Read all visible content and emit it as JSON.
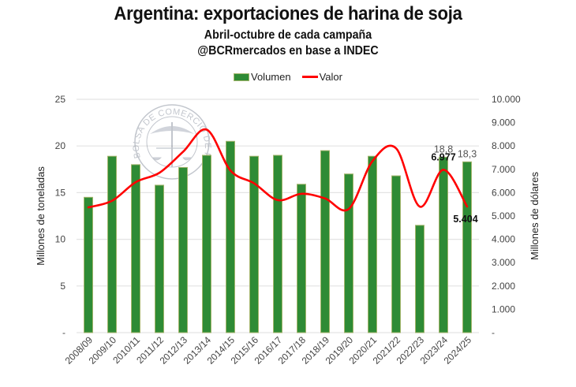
{
  "chart_data": {
    "type": "bar+line",
    "title": "Argentina: exportaciones de harina de soja",
    "subtitle": "Abril-octubre de cada campaña",
    "source": "@BCRmercados en base a INDEC",
    "categories": [
      "2008/09",
      "2009/10",
      "2010/11",
      "2011/12",
      "2012/13",
      "2013/14",
      "2014/15",
      "2015/16",
      "2016/17",
      "2017/18",
      "2018/19",
      "2019/20",
      "2020/21",
      "2021/22",
      "2022/23",
      "2023/24",
      "2024/25"
    ],
    "series": [
      {
        "name": "Volumen",
        "type": "bar",
        "axis": "left",
        "color": "#2e8b35",
        "values": [
          14.5,
          18.9,
          18.0,
          15.8,
          17.7,
          19.0,
          20.5,
          18.9,
          19.0,
          15.9,
          19.5,
          17.0,
          18.9,
          16.8,
          11.5,
          18.8,
          18.3
        ]
      },
      {
        "name": "Valor",
        "type": "line",
        "axis": "right",
        "color": "#ff0000",
        "values": [
          5370,
          5650,
          6450,
          6850,
          7750,
          8700,
          6950,
          6400,
          5680,
          5950,
          5750,
          5300,
          7350,
          7900,
          5400,
          6977,
          5404
        ]
      }
    ],
    "data_labels": [
      {
        "series": "Volumen",
        "category": "2023/24",
        "text": "18,8"
      },
      {
        "series": "Volumen",
        "category": "2024/25",
        "text": "18,3"
      },
      {
        "series": "Valor",
        "category": "2023/24",
        "text": "6.977"
      },
      {
        "series": "Valor",
        "category": "2024/25",
        "text": "5.404"
      }
    ],
    "ylabel": "Millones de toneladas",
    "y2label": "Millones de dólares",
    "ylim": [
      0,
      25
    ],
    "y2lim": [
      0,
      10000
    ],
    "yticks": [
      "-",
      "5",
      "10",
      "15",
      "20",
      "25"
    ],
    "y2ticks": [
      "-",
      "1.000",
      "2.000",
      "3.000",
      "4.000",
      "5.000",
      "6.000",
      "7.000",
      "8.000",
      "9.000",
      "10.000"
    ],
    "grid": true,
    "legend": "top-center",
    "watermark": "BOLSA DE COMERCIO DE ROSARIO"
  }
}
